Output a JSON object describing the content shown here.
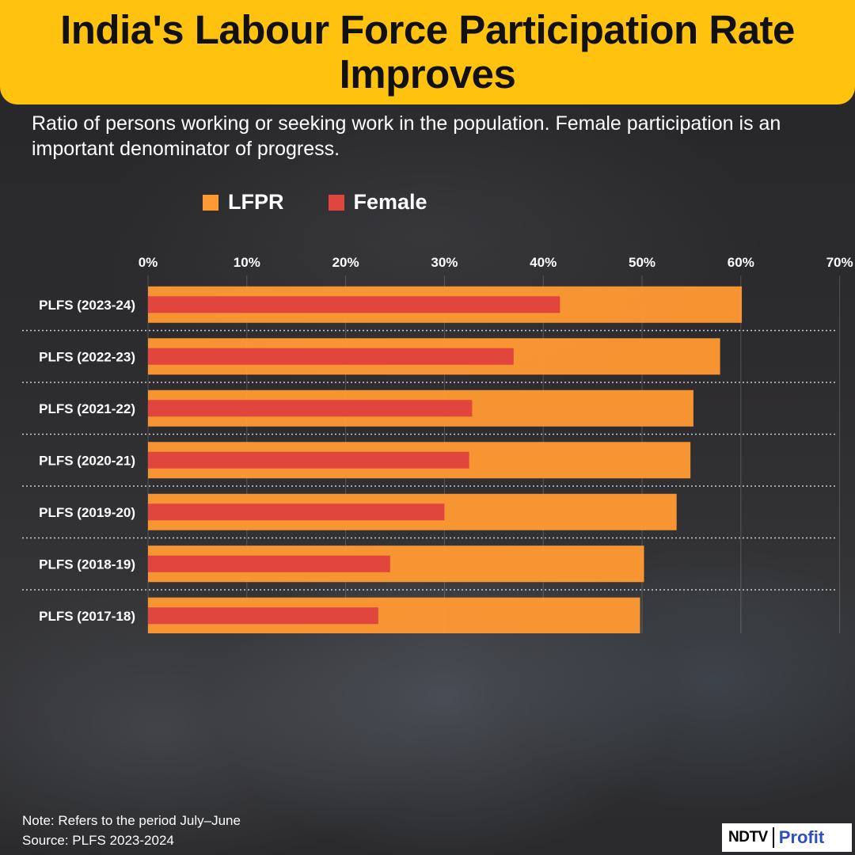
{
  "header": {
    "title": "India's Labour Force Participation Rate Improves"
  },
  "subtitle": "Ratio of persons working or seeking work in the population. Female participation is an important denominator of progress.",
  "legend": [
    {
      "label": "LFPR",
      "color": "#ff9933"
    },
    {
      "label": "Female",
      "color": "#e0463e"
    }
  ],
  "chart_data": {
    "type": "bar",
    "orientation": "horizontal",
    "categories": [
      "PLFS (2023-24)",
      "PLFS (2022-23)",
      "PLFS (2021-22)",
      "PLFS (2020-21)",
      "PLFS (2019-20)",
      "PLFS (2018-19)",
      "PLFS (2017-18)"
    ],
    "series": [
      {
        "name": "LFPR",
        "color": "#ff9933",
        "values": [
          60.1,
          57.9,
          55.2,
          54.9,
          53.5,
          50.2,
          49.8
        ]
      },
      {
        "name": "Female",
        "color": "#e0463e",
        "values": [
          41.7,
          37.0,
          32.8,
          32.5,
          30.0,
          24.5,
          23.3
        ]
      }
    ],
    "xlim": [
      0,
      70
    ],
    "xticks": [
      "0%",
      "10%",
      "20%",
      "30%",
      "40%",
      "50%",
      "60%",
      "70%"
    ],
    "legend_position": "top"
  },
  "footer": {
    "note": "Note: Refers to the period July–June",
    "source": "Source: PLFS 2023-2024"
  },
  "logo": {
    "ndtv": "NDTV",
    "profit": "Profit"
  }
}
